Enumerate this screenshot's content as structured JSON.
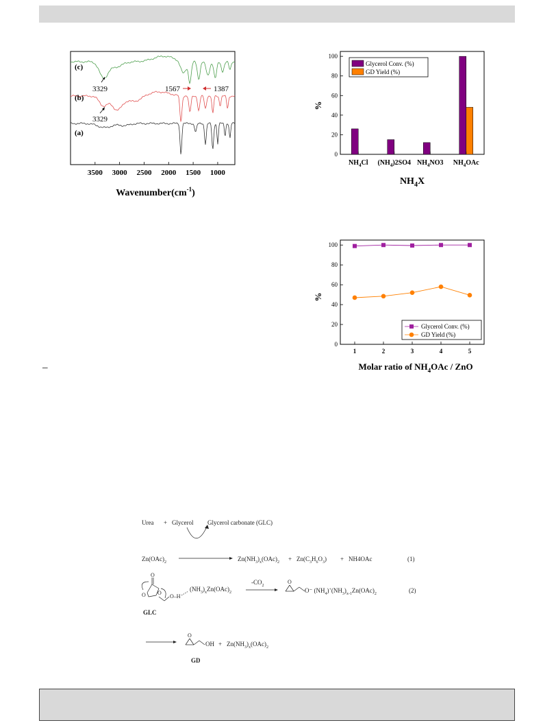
{
  "ftir": {
    "x_label": "Wavenumber(cm",
    "x_label_sup": "-1",
    "x_label_tail": ")",
    "ticks": [
      "3500",
      "3000",
      "2500",
      "2000",
      "1500",
      "1000"
    ],
    "tick_values": [
      3500,
      3000,
      2500,
      2000,
      1500,
      1000
    ],
    "xlim": [
      4000,
      650
    ],
    "curve_labels": [
      "(c)",
      "(b)",
      "(a)"
    ],
    "annotations": [
      "3329",
      "1567",
      "1387",
      "3329"
    ],
    "colors": {
      "a": "#333333",
      "b": "#e05050",
      "c": "#4c9e4c",
      "arrow": "#d03030"
    }
  },
  "chart_data": [
    {
      "type": "bar",
      "categories": [
        "NH4Cl",
        "(NH4)2SO4",
        "NH4NO3",
        "NH4OAc"
      ],
      "category_labels": [
        {
          "main": "NH",
          "sub": "4",
          "tail": "Cl"
        },
        {
          "main": "(NH",
          "sub": "4",
          "tail": ")2SO4"
        },
        {
          "main": "NH",
          "sub": "4",
          "tail": "NO3"
        },
        {
          "main": "NH",
          "sub": "4",
          "tail": "OAc"
        }
      ],
      "series": [
        {
          "name": "Glycerol Conv. (%)",
          "values": [
            26,
            15,
            12,
            100
          ],
          "color": "#800080"
        },
        {
          "name": "GD Yield (%)",
          "values": [
            0,
            0,
            0,
            48
          ],
          "color": "#ff8000"
        }
      ],
      "ylabel": "%",
      "xlabel_main": "NH",
      "xlabel_sub": "4",
      "xlabel_tail": "X",
      "ylim": [
        0,
        105
      ],
      "y_ticks": [
        "0",
        "20",
        "40",
        "60",
        "80",
        "100"
      ],
      "y_tick_values": [
        0,
        20,
        40,
        60,
        80,
        100
      ],
      "legend": "top-left"
    },
    {
      "type": "line",
      "x": [
        1,
        2,
        3,
        4,
        5
      ],
      "x_ticks": [
        "1",
        "2",
        "3",
        "4",
        "5"
      ],
      "series": [
        {
          "name": "Glycerol Conv. (%)",
          "values": [
            99,
            100,
            99.5,
            100,
            100
          ],
          "color": "#a020a0",
          "marker": "square"
        },
        {
          "name": "GD Yield (%)",
          "values": [
            47,
            48.5,
            52,
            58,
            49.5
          ],
          "color": "#ff8000",
          "marker": "circle"
        }
      ],
      "ylabel": "%",
      "xlabel_main": "Molar ratio of NH",
      "xlabel_sub": "4",
      "xlabel_tail": "OAc / ZnO",
      "ylim": [
        0,
        105
      ],
      "xlim": [
        0.5,
        5.5
      ],
      "y_ticks": [
        "0",
        "20",
        "40",
        "60",
        "80",
        "100"
      ],
      "y_tick_values": [
        0,
        20,
        40,
        60,
        80,
        100
      ],
      "legend": "bottom-right"
    }
  ],
  "scheme": {
    "urea": "Urea",
    "plus": "+",
    "glycerol": "Glycerol",
    "glc_full": "Glycerol carbonate (GLC)",
    "zn_oac": "Zn(OAc)",
    "two": "2",
    "r1_p1": "Zn(NH",
    "r1_p1b": ")",
    "r1_p1c": "(OAc)",
    "r1_p2": "Zn(C",
    "r1_p2b": "H",
    "r1_p2c": "O",
    "r1_p2d": ")",
    "three": "3",
    "six": "6",
    "x": "x",
    "r1_p3": "NH4OAc",
    "eq1": "(1)",
    "r2_reagent": "(NH",
    "r2_reagent_b": ")",
    "r2_reagent_c": "Zn(OAc)",
    "co2": "-CO",
    "r2_prod_a": "O",
    "r2_prod_b": "(NH",
    "r2_prod_c": ")",
    "r2_prod_d": "(NH",
    "r2_prod_e": ")",
    "r2_prod_f": "Zn(OAc)",
    "four": "4",
    "xm1": "x-1",
    "eq2": "(2)",
    "glc": "GLC",
    "oh": "OH",
    "gd": "GD",
    "r3_p": "Zn(NH",
    "r3_pb": ")",
    "r3_pc": "(OAc)"
  },
  "misc": {
    "dash": "–"
  }
}
